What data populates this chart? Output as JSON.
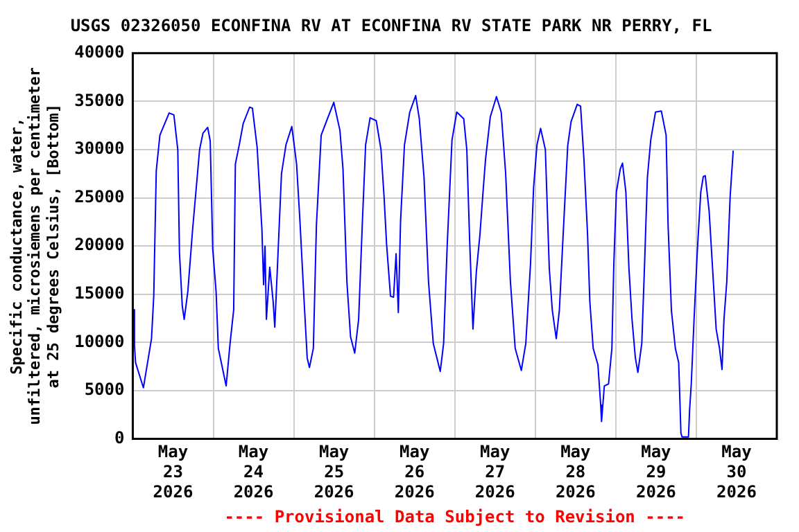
{
  "chart_data": {
    "type": "line",
    "title": "USGS 02326050 ECONFINA RV AT ECONFINA RV STATE PARK NR PERRY, FL",
    "ylabel": "Specific conductance, water,\nunfiltered, microsiemens per centimeter\nat 25 degrees Celsius, [Bottom]",
    "annotations": [
      "---- Provisional Data Subject to Revision ----"
    ],
    "x": [
      "2026-05-23T00:15",
      "2026-05-23T00:30",
      "2026-05-23T00:50",
      "2026-05-23T03:10",
      "2026-05-23T05:35",
      "2026-05-23T06:15",
      "2026-05-23T07:00",
      "2026-05-23T08:05",
      "2026-05-23T10:50",
      "2026-05-23T12:15",
      "2026-05-23T13:25",
      "2026-05-23T13:55",
      "2026-05-23T14:45",
      "2026-05-23T15:20",
      "2026-05-23T16:25",
      "2026-05-23T17:50",
      "2026-05-23T19:55",
      "2026-05-23T20:55",
      "2026-05-23T22:20",
      "2026-05-23T23:05",
      "2026-05-23T23:50",
      "2026-05-24T00:50",
      "2026-05-24T01:30",
      "2026-05-24T03:50",
      "2026-05-24T05:00",
      "2026-05-24T06:05",
      "2026-05-24T06:35",
      "2026-05-24T07:45",
      "2026-05-24T08:55",
      "2026-05-24T10:50",
      "2026-05-24T11:40",
      "2026-05-24T13:05",
      "2026-05-24T14:30",
      "2026-05-24T15:00",
      "2026-05-24T15:25",
      "2026-05-24T15:50",
      "2026-05-24T16:50",
      "2026-05-24T17:50",
      "2026-05-24T18:20",
      "2026-05-24T19:10",
      "2026-05-24T20:20",
      "2026-05-24T21:40",
      "2026-05-24T23:25",
      "2026-05-25T00:50",
      "2026-05-25T01:50",
      "2026-05-25T03:00",
      "2026-05-25T04:00",
      "2026-05-25T04:40",
      "2026-05-25T05:50",
      "2026-05-25T06:45",
      "2026-05-25T08:10",
      "2026-05-25T10:15",
      "2026-05-25T11:55",
      "2026-05-25T13:45",
      "2026-05-25T14:40",
      "2026-05-25T15:50",
      "2026-05-25T16:55",
      "2026-05-25T18:10",
      "2026-05-25T19:20",
      "2026-05-25T20:25",
      "2026-05-25T21:25",
      "2026-05-25T22:45",
      "2026-05-26T00:35",
      "2026-05-26T02:00",
      "2026-05-26T02:55",
      "2026-05-26T03:40",
      "2026-05-26T04:50",
      "2026-05-26T05:45",
      "2026-05-26T06:30",
      "2026-05-26T07:10",
      "2026-05-26T07:50",
      "2026-05-26T09:00",
      "2026-05-26T10:35",
      "2026-05-26T12:20",
      "2026-05-26T13:25",
      "2026-05-26T14:50",
      "2026-05-26T16:10",
      "2026-05-26T17:35",
      "2026-05-26T19:40",
      "2026-05-26T20:40",
      "2026-05-26T21:45",
      "2026-05-26T23:10",
      "2026-05-27T00:35",
      "2026-05-27T02:40",
      "2026-05-27T03:35",
      "2026-05-27T04:25",
      "2026-05-27T05:25",
      "2026-05-27T06:25",
      "2026-05-27T07:30",
      "2026-05-27T08:25",
      "2026-05-27T09:10",
      "2026-05-27T10:35",
      "2026-05-27T12:25",
      "2026-05-27T13:50",
      "2026-05-27T15:10",
      "2026-05-27T16:35",
      "2026-05-27T18:00",
      "2026-05-27T19:50",
      "2026-05-27T21:10",
      "2026-05-27T22:35",
      "2026-05-27T23:30",
      "2026-05-28T00:30",
      "2026-05-28T01:35",
      "2026-05-28T03:00",
      "2026-05-28T04:10",
      "2026-05-28T05:05",
      "2026-05-28T06:15",
      "2026-05-28T07:10",
      "2026-05-28T08:35",
      "2026-05-28T09:40",
      "2026-05-28T10:40",
      "2026-05-28T12:30",
      "2026-05-28T13:30",
      "2026-05-28T14:30",
      "2026-05-28T15:35",
      "2026-05-28T16:15",
      "2026-05-28T17:15",
      "2026-05-28T18:40",
      "2026-05-28T19:30",
      "2026-05-28T19:45",
      "2026-05-28T20:35",
      "2026-05-28T21:50",
      "2026-05-28T22:50",
      "2026-05-28T23:25",
      "2026-05-29T00:10",
      "2026-05-29T01:20",
      "2026-05-29T02:00",
      "2026-05-29T03:00",
      "2026-05-29T03:55",
      "2026-05-29T04:50",
      "2026-05-29T05:50",
      "2026-05-29T06:35",
      "2026-05-29T07:45",
      "2026-05-29T08:35",
      "2026-05-29T09:25",
      "2026-05-29T10:25",
      "2026-05-29T11:50",
      "2026-05-29T13:35",
      "2026-05-29T15:00",
      "2026-05-29T15:35",
      "2026-05-29T16:35",
      "2026-05-29T17:45",
      "2026-05-29T18:45",
      "2026-05-29T19:25",
      "2026-05-29T19:45",
      "2026-05-29T21:40",
      "2026-05-29T22:00",
      "2026-05-29T22:30",
      "2026-05-29T23:20",
      "2026-05-30T00:20",
      "2026-05-30T01:20",
      "2026-05-30T02:05",
      "2026-05-30T02:40",
      "2026-05-30T03:50",
      "2026-05-30T04:55",
      "2026-05-30T05:55",
      "2026-05-30T06:55",
      "2026-05-30T07:40",
      "2026-05-30T08:15",
      "2026-05-30T09:05",
      "2026-05-30T10:05",
      "2026-05-30T11:00"
    ],
    "series": [
      {
        "color": "#0000ff",
        "values": [
          13400,
          9700,
          7900,
          5300,
          10400,
          14800,
          27800,
          31500,
          33800,
          33600,
          30000,
          19300,
          13800,
          12400,
          15300,
          21700,
          30000,
          31700,
          32300,
          30900,
          19700,
          15300,
          9400,
          5500,
          9900,
          13400,
          28500,
          30500,
          32700,
          34400,
          34300,
          30200,
          21700,
          16000,
          20000,
          12400,
          17800,
          14300,
          11600,
          18200,
          27500,
          30500,
          32400,
          28500,
          22600,
          14800,
          8400,
          7400,
          9400,
          22200,
          31500,
          33400,
          34900,
          32000,
          28000,
          16300,
          10600,
          8900,
          12400,
          22200,
          30500,
          33300,
          33000,
          30000,
          25100,
          20200,
          14800,
          14700,
          19200,
          13100,
          22600,
          30500,
          33900,
          35600,
          33200,
          27100,
          16300,
          9900,
          7000,
          9900,
          20200,
          31000,
          33900,
          33200,
          30000,
          20700,
          11400,
          17300,
          21200,
          25600,
          29000,
          33400,
          35500,
          33900,
          27500,
          16300,
          9400,
          7100,
          9900,
          18200,
          26100,
          30500,
          32200,
          30000,
          17700,
          13300,
          10400,
          13300,
          23100,
          30400,
          32900,
          34700,
          34500,
          29000,
          21200,
          14300,
          9400,
          7700,
          3500,
          1800,
          5500,
          5700,
          9400,
          18200,
          25600,
          28000,
          28600,
          25600,
          17700,
          12400,
          8400,
          6900,
          9900,
          18200,
          27100,
          31000,
          33900,
          34000,
          31500,
          22200,
          13300,
          9400,
          7900,
          600,
          200,
          200,
          3000,
          5700,
          12400,
          19700,
          25600,
          27200,
          27300,
          23600,
          17300,
          11400,
          9400,
          7200,
          12400,
          16300,
          25100,
          29900
        ]
      }
    ],
    "xlim": [
      "2026-05-23",
      "2026-05-31"
    ],
    "xticks": [
      {
        "value": "2026-05-23T12:00",
        "label": "May\n23\n2026"
      },
      {
        "value": "2026-05-24",
        "label": null
      },
      {
        "value": "2026-05-24T12:00",
        "label": "May\n24\n2026"
      },
      {
        "value": "2026-05-25",
        "label": null
      },
      {
        "value": "2026-05-25T12:00",
        "label": "May\n25\n2026"
      },
      {
        "value": "2026-05-26",
        "label": null
      },
      {
        "value": "2026-05-26T12:00",
        "label": "May\n26\n2026"
      },
      {
        "value": "2026-05-27",
        "label": null
      },
      {
        "value": "2026-05-27T12:00",
        "label": "May\n27\n2026"
      },
      {
        "value": "2026-05-28",
        "label": null
      },
      {
        "value": "2026-05-28T12:00",
        "label": "May\n28\n2026"
      },
      {
        "value": "2026-05-29",
        "label": null
      },
      {
        "value": "2026-05-29T12:00",
        "label": "May\n29\n2026"
      },
      {
        "value": "2026-05-30",
        "label": null
      },
      {
        "value": "2026-05-30T12:00",
        "label": "May\n30\n2026"
      }
    ],
    "ylim": [
      0,
      40000
    ],
    "yticks": [
      0,
      5000,
      10000,
      15000,
      20000,
      25000,
      30000,
      35000,
      40000
    ],
    "grid": true,
    "legend": false,
    "marker": "none",
    "line_style": "solid"
  }
}
